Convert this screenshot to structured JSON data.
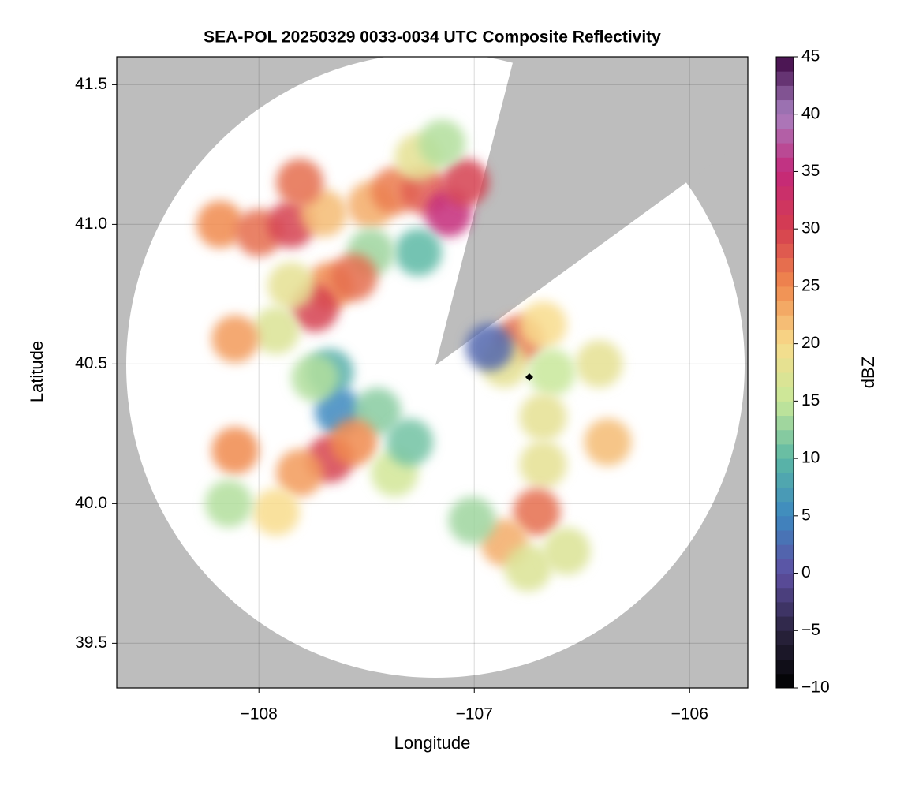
{
  "chart_data": {
    "type": "radar",
    "title": "SEA-POL 20250329 0033-0034 UTC Composite Reflectivity",
    "xlabel": "Longitude",
    "ylabel": "Latitude",
    "x": [
      -108.18,
      -108.0,
      -107.85,
      -107.7,
      -107.81,
      -107.48,
      -107.37,
      -107.23,
      -107.12,
      -107.04,
      -107.26,
      -107.15,
      -107.26,
      -107.48,
      -107.67,
      -107.74,
      -107.56,
      -107.85,
      -107.92,
      -108.11,
      -107.67,
      -107.63,
      -107.45,
      -107.74,
      -107.67,
      -107.81,
      -107.56,
      -107.37,
      -107.92,
      -107.3,
      -108.11,
      -108.14,
      -106.79,
      -106.68,
      -106.86,
      -106.42,
      -106.64,
      -106.68,
      -106.38,
      -106.68,
      -106.71,
      -106.86,
      -106.75,
      -106.57,
      -107.01,
      -106.93
    ],
    "y": [
      41.0,
      40.97,
      41.0,
      41.04,
      41.15,
      41.07,
      41.12,
      41.12,
      41.04,
      41.15,
      41.24,
      41.29,
      40.9,
      40.9,
      40.78,
      40.7,
      40.81,
      40.78,
      40.62,
      40.59,
      40.47,
      40.33,
      40.33,
      40.45,
      40.16,
      40.11,
      40.22,
      40.11,
      39.97,
      40.22,
      40.19,
      40.0,
      40.59,
      40.64,
      40.5,
      40.5,
      40.47,
      40.31,
      40.22,
      40.14,
      39.97,
      39.86,
      39.77,
      39.83,
      39.94,
      40.56
    ],
    "values": [
      25,
      27,
      30,
      22,
      27,
      23,
      26,
      28,
      35,
      30,
      18,
      14,
      10,
      13,
      25,
      30,
      27,
      18,
      17,
      24,
      9,
      5,
      12,
      14,
      30,
      24,
      25,
      16,
      20,
      11,
      25,
      14,
      27,
      20,
      18,
      18,
      15,
      18,
      22,
      18,
      27,
      23,
      17,
      17,
      13,
      2
    ],
    "xlim": [
      -108.66,
      -105.73
    ],
    "ylim": [
      39.34,
      41.6
    ],
    "xticks": [
      {
        "value": -108,
        "label": "−108"
      },
      {
        "value": -107,
        "label": "−107"
      },
      {
        "value": -106,
        "label": "−106"
      }
    ],
    "yticks": [
      39.5,
      {
        "value": 40,
        "label": "40.0"
      },
      40.5,
      {
        "value": 41,
        "label": "41.0"
      },
      41.5
    ],
    "grid": true,
    "colorbar": {
      "label": "dBZ",
      "clim": [
        -10,
        45
      ],
      "ticks": [
        {
          "value": -10,
          "label": "−10"
        },
        {
          "value": -5,
          "label": "−5"
        },
        0,
        5,
        10,
        15,
        20,
        25,
        30,
        35,
        40,
        45
      ],
      "colors": [
        "#000000",
        "#2b2440",
        "#5e4fa2",
        "#3d88c0",
        "#5cb8a4",
        "#c8e89a",
        "#f8dc8c",
        "#f08a4e",
        "#d53e4f",
        "#c4287a",
        "#a880c0",
        "#3f0745"
      ]
    }
  }
}
